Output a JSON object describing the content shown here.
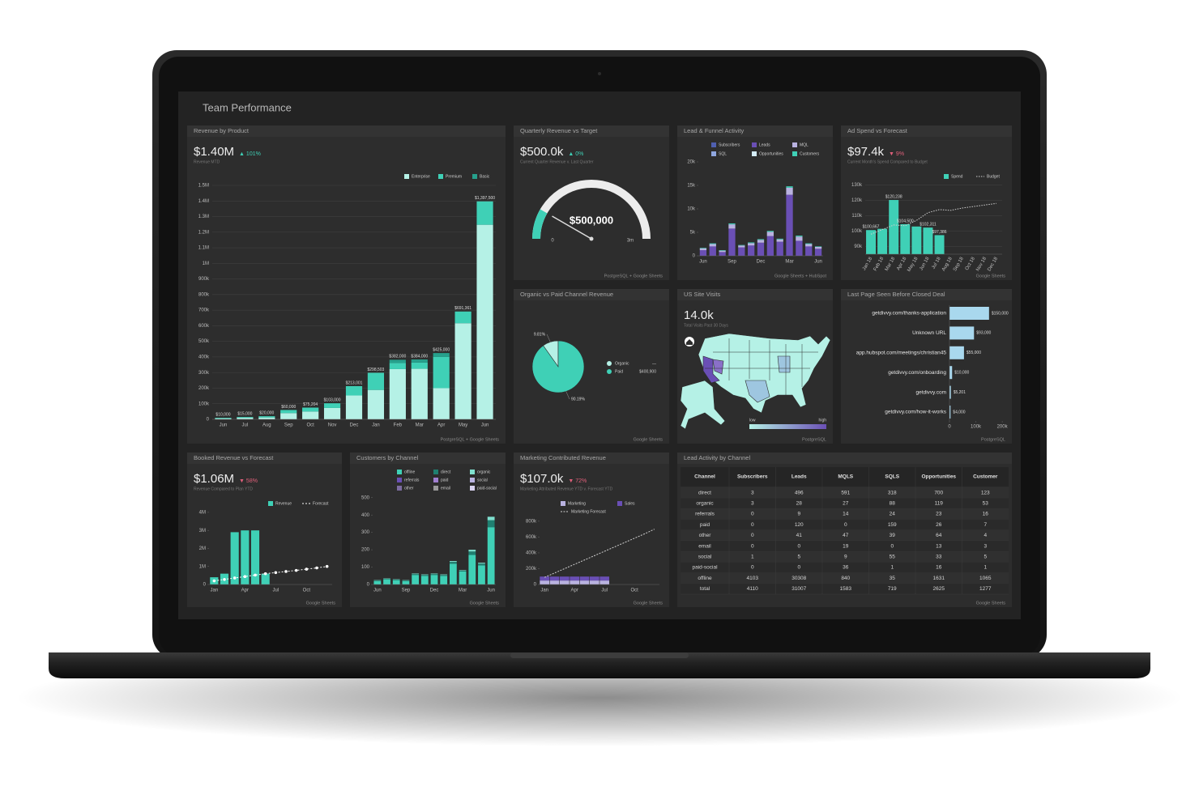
{
  "header": {
    "title": "Team Performance"
  },
  "chart_data": [
    {
      "type": "bar",
      "title": "Revenue by Product",
      "kpi": "$1.40M",
      "kpi_change": "▲ 101%",
      "kpi_color": "#3fd0b6",
      "kpi_caption": "Revenue MTD",
      "stacked": true,
      "grid": true,
      "categories": [
        "Jun",
        "Jul",
        "Aug",
        "Sep",
        "Oct",
        "Nov",
        "Dec",
        "Jan",
        "Feb",
        "Mar",
        "Apr",
        "May",
        "Jun"
      ],
      "series": [
        {
          "name": "Enterprise",
          "color": "#b5f1e6",
          "values": [
            6000,
            10000,
            12000,
            40000,
            50204,
            73000,
            153001,
            188503,
            322000,
            324000,
            200000,
            616361,
            1247500
          ]
        },
        {
          "name": "Premium",
          "color": "#3fd0b6",
          "values": [
            4000,
            5000,
            8000,
            20000,
            25000,
            30000,
            60000,
            110000,
            40000,
            40000,
            200000,
            75000,
            150000
          ]
        },
        {
          "name": "Basic",
          "color": "#26a08c",
          "values": [
            0,
            0,
            0,
            0,
            0,
            0,
            0,
            0,
            20000,
            20000,
            25000,
            0,
            0
          ]
        }
      ],
      "totals": [
        10000,
        15000,
        20000,
        60000,
        75204,
        103000,
        213001,
        298503,
        382000,
        384000,
        425000,
        691361,
        1397500
      ],
      "total_labels": [
        "$10,000",
        "$15,000",
        "$20,000",
        "$60,000",
        "$75,204",
        "$103,000",
        "$213,001",
        "$298,503",
        "$382,000",
        "$384,000",
        "$425,000",
        "$691,361",
        "$1,397,500"
      ],
      "ylim": [
        0,
        1500000
      ],
      "yticks": [
        0,
        {
          "value": 100000,
          "label": "100k"
        },
        {
          "value": 200000,
          "label": "200k"
        },
        {
          "value": 300000,
          "label": "300k"
        },
        {
          "value": 400000,
          "label": "400k"
        },
        {
          "value": 500000,
          "label": "500k"
        },
        {
          "value": 600000,
          "label": "600k"
        },
        {
          "value": 700000,
          "label": "700k"
        },
        {
          "value": 800000,
          "label": "800k"
        },
        {
          "value": 900000,
          "label": "900k"
        },
        {
          "value": 1000000,
          "label": "1M"
        },
        {
          "value": 1100000,
          "label": "1.1M"
        },
        {
          "value": 1200000,
          "label": "1.2M"
        },
        {
          "value": 1300000,
          "label": "1.3M"
        },
        {
          "value": 1400000,
          "label": "1.4M"
        },
        {
          "value": 1500000,
          "label": "1.5M"
        }
      ],
      "source": "PostgreSQL + Google Sheets"
    },
    {
      "type": "gauge",
      "title": "Quarterly Revenue vs Target",
      "kpi": "$500.0k",
      "kpi_change": "▲ 0%",
      "kpi_color": "#3fd0b6",
      "kpi_caption": "Current Quarter Revenue v. Last Quarter",
      "value": 500000,
      "value_label": "$500,000",
      "lim": [
        0,
        3000000
      ],
      "ticks": [
        0,
        {
          "value": 3000000,
          "label": "3m"
        }
      ],
      "color": "#3fd0b6",
      "source": "PostgreSQL + Google Sheets"
    },
    {
      "type": "bar",
      "title": "Lead & Funnel Activity",
      "stacked": true,
      "grid": false,
      "categories": [
        "Jun",
        null,
        null,
        "Sep",
        null,
        null,
        "Dec",
        null,
        null,
        "Mar",
        null,
        null,
        "Jun"
      ],
      "series": [
        {
          "name": "Subscribers",
          "color": "#4f5fb0",
          "values": [
            0,
            0,
            0,
            0,
            0,
            0,
            0,
            0,
            0,
            0,
            0,
            0,
            0
          ]
        },
        {
          "name": "Leads",
          "color": "#6a4fb5",
          "values": [
            1200,
            2000,
            800,
            5800,
            1800,
            2200,
            2800,
            4200,
            3000,
            13000,
            3200,
            2000,
            1500
          ]
        },
        {
          "name": "MQL",
          "color": "#b9b2e0",
          "values": [
            400,
            500,
            300,
            900,
            400,
            500,
            600,
            900,
            500,
            1500,
            900,
            500,
            400
          ]
        },
        {
          "name": "SQL",
          "color": "#8fa6de",
          "values": [
            0,
            0,
            0,
            0,
            0,
            0,
            0,
            0,
            0,
            0,
            0,
            0,
            0
          ]
        },
        {
          "name": "Opportunities",
          "color": "#d4ecf7",
          "values": [
            0,
            0,
            0,
            0,
            0,
            0,
            0,
            0,
            0,
            0,
            0,
            0,
            0
          ]
        },
        {
          "name": "Customers",
          "color": "#3fd0b6",
          "values": [
            100,
            150,
            100,
            200,
            100,
            150,
            150,
            200,
            150,
            300,
            200,
            150,
            100
          ]
        }
      ],
      "ylim": [
        0,
        20000
      ],
      "yticks": [
        0,
        {
          "value": 5000,
          "label": "5k"
        },
        {
          "value": 10000,
          "label": "10k"
        },
        {
          "value": 15000,
          "label": "15k"
        },
        {
          "value": 20000,
          "label": "20k"
        }
      ],
      "source": "Google Sheets + HubSpot"
    },
    {
      "type": "bar",
      "title": "Ad Spend vs Forecast",
      "kpi": "$97.4k",
      "kpi_change": "▼ 9%",
      "kpi_color": "#e0607a",
      "kpi_caption": "Current Month's Spend Compared to Budget",
      "stacked": false,
      "grid": true,
      "categories": [
        "Jan 18",
        "Feb 18",
        "Mar 18",
        "Apr 18",
        "May 18",
        "Jun 18",
        "Jul 18",
        "Aug 18",
        "Sep 18",
        "Oct 18",
        "Nov 18",
        "Dec 18"
      ],
      "series": [
        {
          "name": "Spend",
          "color": "#3fd0b6",
          "values": [
            100667,
            101500,
            120238,
            104500,
            103000,
            102311,
            97386,
            null,
            null,
            null,
            null,
            null
          ],
          "value_labels": [
            "$100,667",
            null,
            "$120,238",
            "$104,500",
            null,
            "$102,311",
            "$97,386",
            null,
            null,
            null,
            null,
            null
          ]
        },
        {
          "name": "Budget",
          "type": "line",
          "color": "#cfcfcf",
          "dash": "1.5 1.5",
          "values": [
            98000,
            101000,
            104000,
            103500,
            107000,
            112000,
            114000,
            113500,
            115000,
            116000,
            117000,
            118000
          ]
        }
      ],
      "ylim": [
        85000,
        135000
      ],
      "yticks": [
        {
          "value": 90000,
          "label": "90k"
        },
        {
          "value": 100000,
          "label": "100k"
        },
        {
          "value": 110000,
          "label": "110k"
        },
        {
          "value": 120000,
          "label": "120k"
        },
        {
          "value": 130000,
          "label": "130k"
        }
      ],
      "source": "Google Sheets"
    },
    {
      "type": "pie",
      "title": "Organic vs Paid Channel Revenue",
      "categories": [
        "Organic",
        "Paid"
      ],
      "values": [
        9.81,
        90.19
      ],
      "value_labels": [
        "9.81%",
        "90.19%"
      ],
      "colors": [
        "#b5f1e6",
        "#3fd0b6"
      ],
      "legend_values": [
        "—",
        "$400,900"
      ],
      "source": "Google Sheets"
    },
    {
      "type": "map",
      "title": "US Site Visits",
      "kpi": "14.0k",
      "kpi_caption": "Total Visits Past 30 Days",
      "legend": [
        "low",
        "high"
      ],
      "source": "PostgreSQL"
    },
    {
      "type": "hbar",
      "title": "Last Page Seen Before Closed Deal",
      "categories": [
        "getdivvy.com/thanks-application",
        "Unknown URL",
        "app.hubspot.com/meetings/christian45",
        "getdivvy.com/onboarding",
        "getdivvy.com",
        "getdivvy.com/how-it-works"
      ],
      "values": [
        150000,
        93000,
        55000,
        10000,
        5201,
        4000
      ],
      "value_labels": [
        "$150,000",
        "$93,000",
        "$55,000",
        "$10,000",
        "$5,201",
        "$4,000"
      ],
      "color": "#a9d8ee",
      "xlim": [
        0,
        215000
      ],
      "xticks": [
        0,
        {
          "value": 100000,
          "label": "100k"
        },
        {
          "value": 200000,
          "label": "200k"
        }
      ],
      "source": "PostgreSQL"
    },
    {
      "type": "bar",
      "title": "Booked Revenue vs Forecast",
      "kpi": "$1.06M",
      "kpi_change": "▼ 58%",
      "kpi_color": "#e0607a",
      "kpi_caption": "Revenue Compared to Plan YTD",
      "stacked": false,
      "grid": false,
      "categories": [
        "Jan",
        null,
        null,
        "Apr",
        null,
        null,
        "Jul",
        null,
        null,
        "Oct",
        null,
        null
      ],
      "series": [
        {
          "name": "Revenue",
          "color": "#3fd0b6",
          "values": [
            400000,
            600000,
            2900000,
            3000000,
            3000000,
            600000,
            null,
            null,
            null,
            null,
            null,
            null
          ]
        },
        {
          "name": "Forecast",
          "type": "line",
          "color": "#ffffff",
          "dash": "2 2",
          "markers": true,
          "values": [
            200000,
            280000,
            360000,
            440000,
            520000,
            600000,
            660000,
            720000,
            780000,
            850000,
            920000,
            1000000
          ]
        }
      ],
      "ylim": [
        0,
        4400000
      ],
      "yticks": [
        0,
        {
          "value": 1000000,
          "label": "1M"
        },
        {
          "value": 2000000,
          "label": "2M"
        },
        {
          "value": 3000000,
          "label": "3M"
        },
        {
          "value": 4000000,
          "label": "4M"
        }
      ],
      "source": "Google Sheets"
    },
    {
      "type": "bar",
      "title": "Customers by Channel",
      "stacked": true,
      "grid": false,
      "categories": [
        "Jun",
        null,
        null,
        "Sep",
        null,
        null,
        "Dec",
        null,
        null,
        "Mar",
        null,
        null,
        "Jun"
      ],
      "series": [
        {
          "name": "offline",
          "color": "#3fd0b6",
          "values": [
            20,
            30,
            25,
            20,
            55,
            50,
            55,
            50,
            120,
            75,
            170,
            110,
            330
          ]
        },
        {
          "name": "direct",
          "color": "#1f7f70",
          "values": [
            3,
            3,
            3,
            3,
            5,
            5,
            5,
            5,
            10,
            5,
            20,
            10,
            40
          ]
        },
        {
          "name": "organic",
          "color": "#7fe0cf",
          "values": [
            2,
            2,
            2,
            2,
            3,
            3,
            3,
            3,
            5,
            3,
            10,
            5,
            20
          ]
        },
        {
          "name": "referrals",
          "color": "#6a4fb5",
          "values": [
            0,
            0,
            0,
            0,
            0,
            0,
            0,
            0,
            0,
            0,
            0,
            0,
            0
          ]
        },
        {
          "name": "paid",
          "color": "#a07fd0",
          "values": [
            0,
            0,
            0,
            0,
            0,
            0,
            0,
            0,
            0,
            0,
            0,
            0,
            0
          ]
        },
        {
          "name": "social",
          "color": "#b9b2e0",
          "values": [
            0,
            0,
            0,
            0,
            0,
            0,
            0,
            0,
            0,
            0,
            0,
            0,
            0
          ]
        },
        {
          "name": "other",
          "color": "#7c6ca0",
          "values": [
            0,
            0,
            0,
            0,
            0,
            0,
            0,
            0,
            0,
            0,
            0,
            0,
            0
          ]
        },
        {
          "name": "email",
          "color": "#9a9a9a",
          "values": [
            0,
            0,
            0,
            0,
            0,
            0,
            0,
            0,
            0,
            0,
            0,
            0,
            0
          ]
        },
        {
          "name": "paid-social",
          "color": "#d8d2f0",
          "values": [
            0,
            0,
            0,
            0,
            0,
            0,
            0,
            0,
            0,
            0,
            0,
            0,
            0
          ]
        }
      ],
      "ylim": [
        0,
        550
      ],
      "yticks": [
        0,
        100,
        200,
        300,
        400,
        500
      ],
      "source": "Google Sheets"
    },
    {
      "type": "bar",
      "title": "Marketing Contributed Revenue",
      "kpi": "$107.0k",
      "kpi_change": "▼ 72%",
      "kpi_color": "#e0607a",
      "kpi_caption": "Marketing Attributed Revenue YTD v. Forecast YTD",
      "stacked": true,
      "grid": false,
      "categories": [
        "Jan",
        null,
        null,
        "Apr",
        null,
        null,
        "Jul",
        null,
        null,
        "Oct",
        null,
        null
      ],
      "series": [
        {
          "name": "Marketing",
          "color": "#b9b2e0",
          "values": [
            50000,
            50000,
            50000,
            50000,
            50000,
            50000,
            50000,
            null,
            null,
            null,
            null,
            null
          ]
        },
        {
          "name": "Sales",
          "color": "#6a4fb5",
          "values": [
            50000,
            50000,
            50000,
            50000,
            50000,
            50000,
            50000,
            null,
            null,
            null,
            null,
            null
          ]
        },
        {
          "name": "Marketing Forecast",
          "type": "line",
          "color": "#cfcfcf",
          "dash": "2 1.5",
          "values": [
            90000,
            145000,
            200000,
            255000,
            310000,
            365000,
            420000,
            475000,
            530000,
            585000,
            640000,
            700000
          ]
        }
      ],
      "ylim": [
        0,
        850000
      ],
      "yticks": [
        0,
        {
          "value": 200000,
          "label": "200k"
        },
        {
          "value": 400000,
          "label": "400k"
        },
        {
          "value": 600000,
          "label": "600k"
        },
        {
          "value": 800000,
          "label": "800k"
        }
      ],
      "source": "Google Sheets"
    }
  ],
  "table": {
    "title": "Lead Activity by Channel",
    "columns": [
      "Channel",
      "Subscribers",
      "Leads",
      "MQLS",
      "SQLS",
      "Opportunities",
      "Customer"
    ],
    "rows": [
      [
        "direct",
        3,
        496,
        591,
        318,
        700,
        123
      ],
      [
        "organic",
        3,
        28,
        27,
        88,
        119,
        53
      ],
      [
        "referrals",
        0,
        9,
        14,
        24,
        23,
        16
      ],
      [
        "paid",
        0,
        120,
        0,
        159,
        26,
        7
      ],
      [
        "other",
        0,
        41,
        47,
        39,
        64,
        4
      ],
      [
        "email",
        0,
        0,
        19,
        0,
        13,
        3
      ],
      [
        "social",
        1,
        5,
        9,
        55,
        33,
        5
      ],
      [
        "paid-social",
        0,
        0,
        36,
        1,
        16,
        1
      ],
      [
        "offline",
        4103,
        30308,
        840,
        35,
        1631,
        1065
      ],
      [
        "total",
        4110,
        31007,
        1583,
        719,
        2625,
        1277
      ]
    ],
    "source": "Google Sheets"
  }
}
